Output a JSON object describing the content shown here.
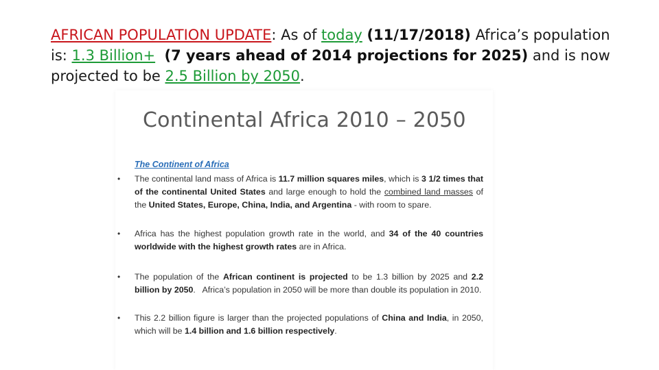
{
  "headline": {
    "label_update": "AFRICAN POPULATION UPDATE",
    "t1": ": As of ",
    "today": "today",
    "t2": " ",
    "date": "(11/17/2018)",
    "t3": " Africa’s population is: ",
    "pop": "1.3 Billion+",
    "t4": "  ",
    "ahead": "(7 years ahead of 2014 projections for 2025)",
    "t5": " and is now projected to be ",
    "proj": "2.5 Billion by 2050",
    "t6": "."
  },
  "slide": {
    "title": "Continental Africa 2010 – 2050",
    "section_heading": "The Continent of Africa",
    "bullet_char": "•",
    "b1": {
      "p1": "The continental land mass of Africa is ",
      "s1": "11.7 million squares miles",
      "p2": ", which is ",
      "s2": "3 1/2 times that of the continental United States",
      "p3": " and large enough to hold the ",
      "u1": "combined land masses",
      "p4": " of the ",
      "s3": "United States, Europe, China, India, and Argentina",
      "p5": " - with room to spare."
    },
    "b2": {
      "p1": "Africa has the highest population growth rate in the world, and ",
      "s1": "34 of the 40 countries worldwide with the highest growth rates",
      "p2": " are in Africa."
    },
    "b3": {
      "p1": "The population of the ",
      "s1": "African continent is projected",
      "p2": " to be 1.3 billion by 2025 and ",
      "s2": "2.2 billion by 2050",
      "p3": ".   Africa’s population in 2050 will be more than double its population in 2010."
    },
    "b4": {
      "p1": "This 2.2 billion figure is larger than the projected populations of ",
      "s1": "China and India",
      "p2": ", in 2050, which will be ",
      "s2": "1.4 billion and 1.6 billion respectively",
      "p3": "."
    }
  }
}
